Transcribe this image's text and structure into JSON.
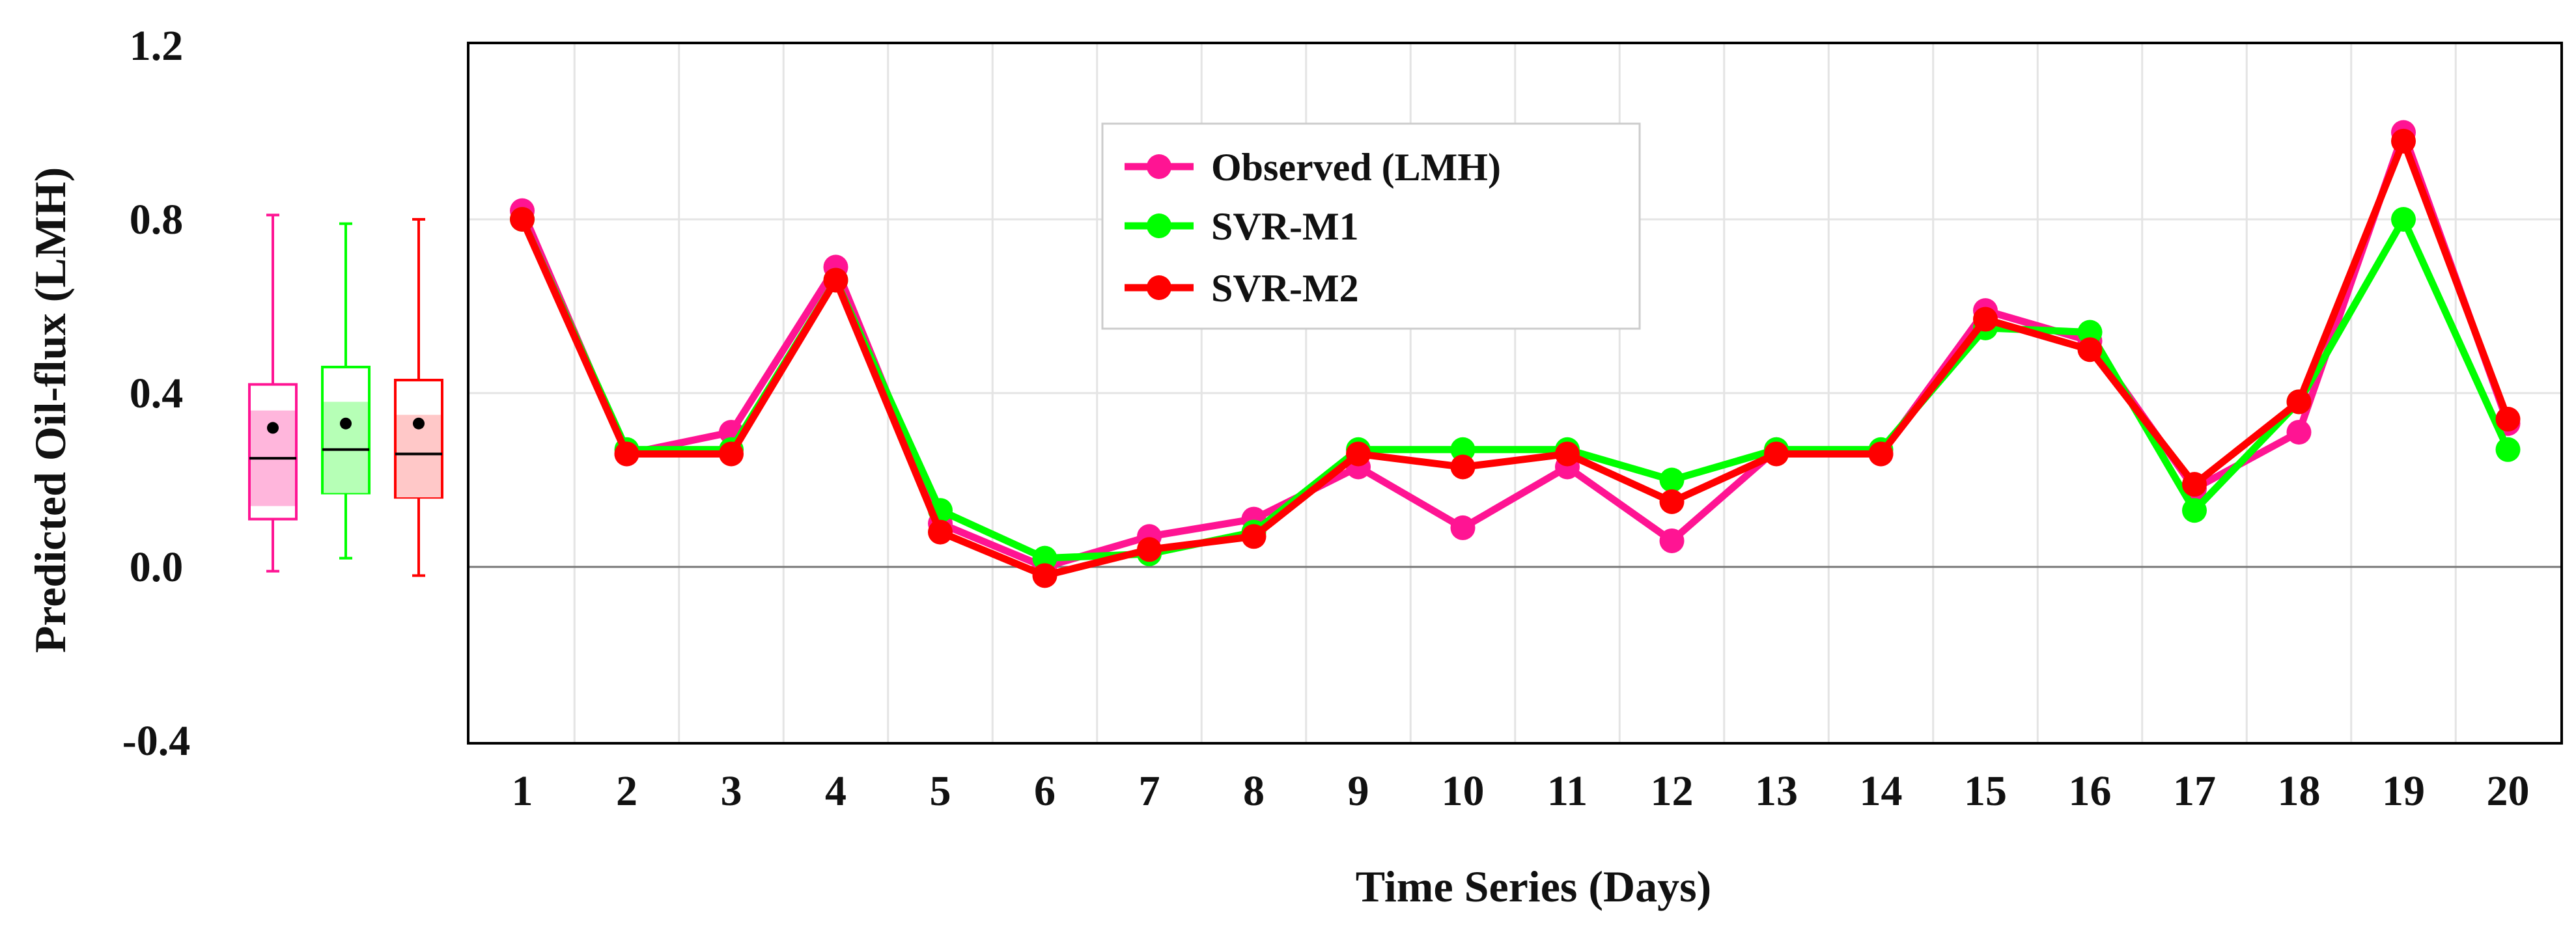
{
  "chart_data": {
    "type": "line",
    "xlabel": "Time Series (Days)",
    "ylabel": "Predicted Oil-flux (LMH)",
    "ylim": [
      -0.4,
      1.2
    ],
    "yticks": [
      1.2,
      0.8,
      0.4,
      0.0,
      -0.4
    ],
    "ytick_labels": [
      "1.2",
      "0.8",
      "0.4",
      "0.0",
      "-0.4"
    ],
    "x": [
      "1",
      "2",
      "3",
      "4",
      "5",
      "6",
      "7",
      "8",
      "9",
      "10",
      "11",
      "12",
      "13",
      "14",
      "15",
      "16",
      "17",
      "18",
      "19",
      "20"
    ],
    "grid": true,
    "legend_position": "top-center",
    "series": [
      {
        "name": "Observed (LMH)",
        "color": "#ff1493",
        "values": [
          0.82,
          0.26,
          0.31,
          0.69,
          0.1,
          0.0,
          0.07,
          0.11,
          0.23,
          0.09,
          0.23,
          0.06,
          0.27,
          0.26,
          0.59,
          0.52,
          0.18,
          0.31,
          1.0,
          0.33
        ]
      },
      {
        "name": "SVR-M1",
        "color": "#00ff00",
        "values": [
          0.8,
          0.27,
          0.27,
          0.66,
          0.13,
          0.02,
          0.03,
          0.08,
          0.27,
          0.27,
          0.27,
          0.2,
          0.27,
          0.27,
          0.55,
          0.54,
          0.13,
          0.38,
          0.8,
          0.27
        ]
      },
      {
        "name": "SVR-M2",
        "color": "#ff0000",
        "values": [
          0.8,
          0.26,
          0.26,
          0.66,
          0.08,
          -0.02,
          0.04,
          0.07,
          0.26,
          0.23,
          0.26,
          0.15,
          0.26,
          0.26,
          0.57,
          0.5,
          0.19,
          0.38,
          0.98,
          0.34
        ]
      }
    ],
    "boxplots": [
      {
        "name": "Observed (LMH)",
        "color": "#ff1493",
        "fill": "#ffb6dc",
        "whisker_low": -0.01,
        "q1": 0.11,
        "median": 0.25,
        "mean": 0.32,
        "q3": 0.42,
        "whisker_high": 0.81,
        "shade_low": 0.14,
        "shade_high": 0.36
      },
      {
        "name": "SVR-M1",
        "color": "#00ff00",
        "fill": "#b6ffb6",
        "whisker_low": 0.02,
        "q1": 0.17,
        "median": 0.27,
        "mean": 0.33,
        "q3": 0.46,
        "whisker_high": 0.79,
        "shade_low": 0.17,
        "shade_high": 0.38
      },
      {
        "name": "SVR-M2",
        "color": "#ff0000",
        "fill": "#ffc8c8",
        "whisker_low": -0.02,
        "q1": 0.16,
        "median": 0.26,
        "mean": 0.33,
        "q3": 0.43,
        "whisker_high": 0.8,
        "shade_low": 0.16,
        "shade_high": 0.35
      }
    ]
  }
}
